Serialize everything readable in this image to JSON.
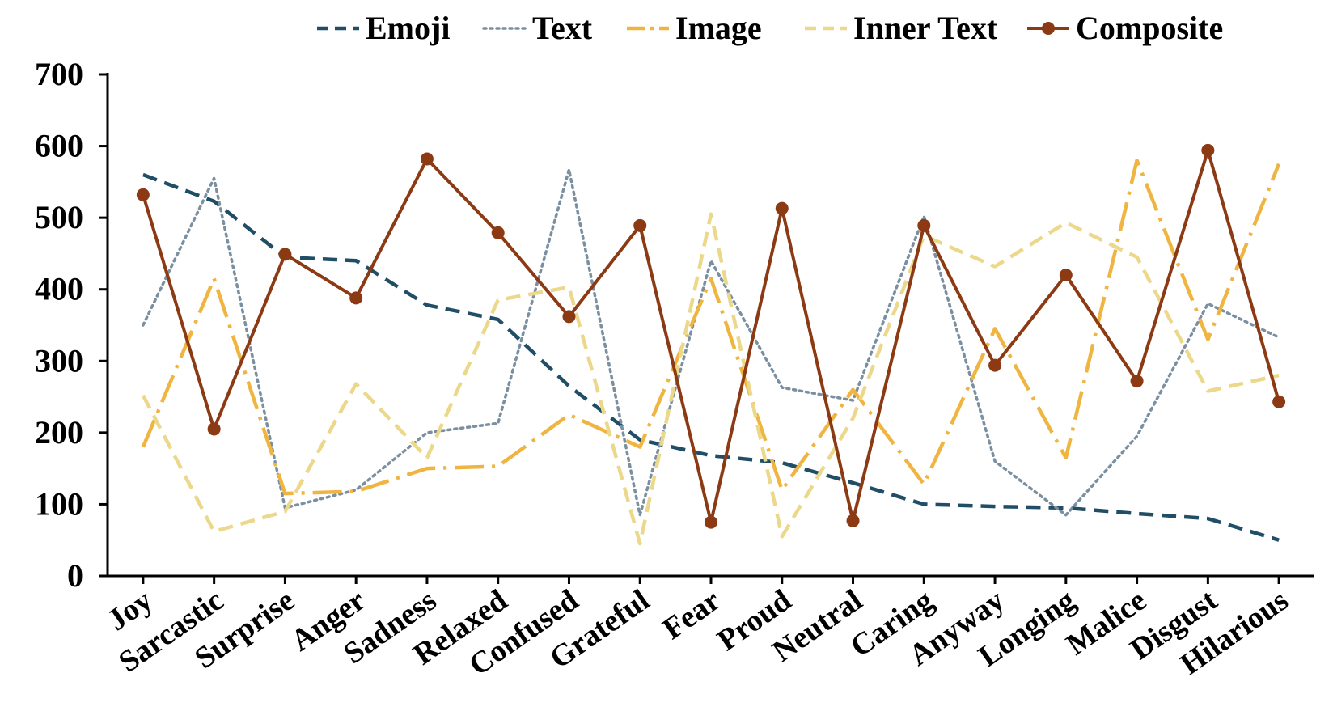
{
  "chart_data": {
    "type": "line",
    "categories": [
      "Joy",
      "Sarcastic",
      "Surprise",
      "Anger",
      "Sadness",
      "Relaxed",
      "Confused",
      "Grateful",
      "Fear",
      "Proud",
      "Neutral",
      "Caring",
      "Anyway",
      "Longing",
      "Malice",
      "Disgust",
      "Hilarious"
    ],
    "series": [
      {
        "name": "Emoji",
        "color": "#1f4e66",
        "style": "dashed",
        "values": [
          560,
          523,
          445,
          440,
          378,
          358,
          265,
          190,
          168,
          158,
          130,
          100,
          97,
          95,
          87,
          80,
          50
        ]
      },
      {
        "name": "Text",
        "color": "#7a8fa0",
        "style": "dotted",
        "values": [
          350,
          555,
          95,
          120,
          200,
          213,
          567,
          85,
          440,
          263,
          245,
          502,
          160,
          85,
          195,
          380,
          333
        ]
      },
      {
        "name": "Image",
        "color": "#f0b440",
        "style": "dash-dot",
        "values": [
          180,
          415,
          115,
          118,
          150,
          153,
          225,
          180,
          415,
          120,
          260,
          128,
          345,
          165,
          580,
          330,
          575
        ]
      },
      {
        "name": "Inner Text",
        "color": "#ecd88a",
        "style": "dashed",
        "values": [
          252,
          62,
          90,
          268,
          165,
          385,
          403,
          45,
          505,
          55,
          220,
          475,
          432,
          493,
          445,
          258,
          280
        ]
      },
      {
        "name": "Composite",
        "color": "#8b3a14",
        "style": "solid-marker",
        "values": [
          532,
          205,
          449,
          388,
          582,
          479,
          362,
          489,
          75,
          513,
          77,
          489,
          294,
          420,
          272,
          594,
          243
        ]
      }
    ],
    "title": "",
    "xlabel": "",
    "ylabel": "",
    "ylim": [
      0,
      700
    ],
    "yticks": [
      0,
      100,
      200,
      300,
      400,
      500,
      600,
      700
    ],
    "grid": false,
    "legend": "top"
  }
}
